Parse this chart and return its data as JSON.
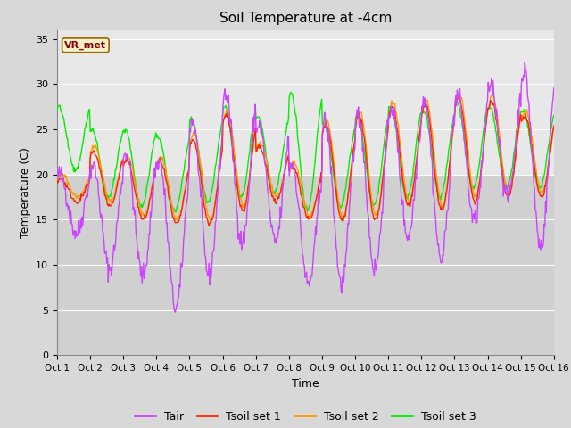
{
  "title": "Soil Temperature at -4cm",
  "xlabel": "Time",
  "ylabel": "Temperature (C)",
  "ylim": [
    0,
    36
  ],
  "yticks": [
    0,
    5,
    10,
    15,
    20,
    25,
    30,
    35
  ],
  "xlim": [
    0,
    15
  ],
  "xtick_labels": [
    "Oct 1",
    "Oct 2",
    "Oct 3",
    "Oct 4",
    "Oct 5",
    "Oct 6",
    "Oct 7",
    "Oct 8",
    "Oct 9",
    "Oct 10",
    "Oct 11",
    "Oct 12",
    "Oct 13",
    "Oct 14",
    "Oct 15",
    "Oct 16"
  ],
  "annotation_text": "VR_met",
  "annotation_bg": "#f5f0c8",
  "annotation_border": "#996600",
  "colors": {
    "Tair": "#cc44ff",
    "Tsoil1": "#ff2200",
    "Tsoil2": "#ff9900",
    "Tsoil3": "#00ee00"
  },
  "legend_labels": [
    "Tair",
    "Tsoil set 1",
    "Tsoil set 2",
    "Tsoil set 3"
  ],
  "outer_bg": "#d8d8d8",
  "plot_bg_lower": "#d0d0d0",
  "plot_bg_upper": "#e8e8e8",
  "grid_color": "#c0c0c0",
  "n_points_per_day": 48,
  "n_days": 15,
  "tair_night_base": [
    13.5,
    9.5,
    8.8,
    5.2,
    8.8,
    12.5,
    12.5,
    7.8,
    7.8,
    9.5,
    13.2,
    10.5,
    14.8,
    17.5,
    12.0
  ],
  "tair_day_peak": [
    20.0,
    21.0,
    22.5,
    21.5,
    26.0,
    29.0,
    25.5,
    21.2,
    25.8,
    26.5,
    27.5,
    28.5,
    28.7,
    30.0,
    31.5
  ],
  "tsoil1_night_base": [
    17.0,
    16.5,
    15.0,
    14.5,
    14.5,
    16.0,
    17.0,
    15.0,
    14.8,
    15.0,
    16.5,
    16.0,
    17.0,
    17.5,
    17.5
  ],
  "tsoil1_day_peak": [
    19.5,
    22.5,
    21.5,
    21.5,
    23.8,
    26.5,
    23.0,
    21.0,
    25.5,
    26.5,
    27.5,
    27.8,
    28.5,
    28.2,
    26.5
  ],
  "tsoil2_night_base": [
    17.5,
    17.0,
    15.5,
    15.0,
    15.0,
    16.5,
    17.5,
    15.5,
    15.2,
    15.5,
    17.0,
    16.5,
    17.5,
    18.0,
    18.0
  ],
  "tsoil2_day_peak": [
    20.0,
    23.0,
    22.0,
    22.0,
    24.5,
    27.0,
    23.5,
    21.5,
    26.0,
    27.0,
    28.0,
    28.3,
    29.0,
    28.7,
    27.0
  ],
  "tsoil3_night_base": [
    20.5,
    17.5,
    16.5,
    16.0,
    17.0,
    17.5,
    18.0,
    16.0,
    16.5,
    16.5,
    17.5,
    17.5,
    18.5,
    18.5,
    18.5
  ],
  "tsoil3_day_peak": [
    27.5,
    25.0,
    25.0,
    24.0,
    26.2,
    27.5,
    26.5,
    29.0,
    25.5,
    26.5,
    27.5,
    27.0,
    28.0,
    27.5,
    27.0
  ]
}
